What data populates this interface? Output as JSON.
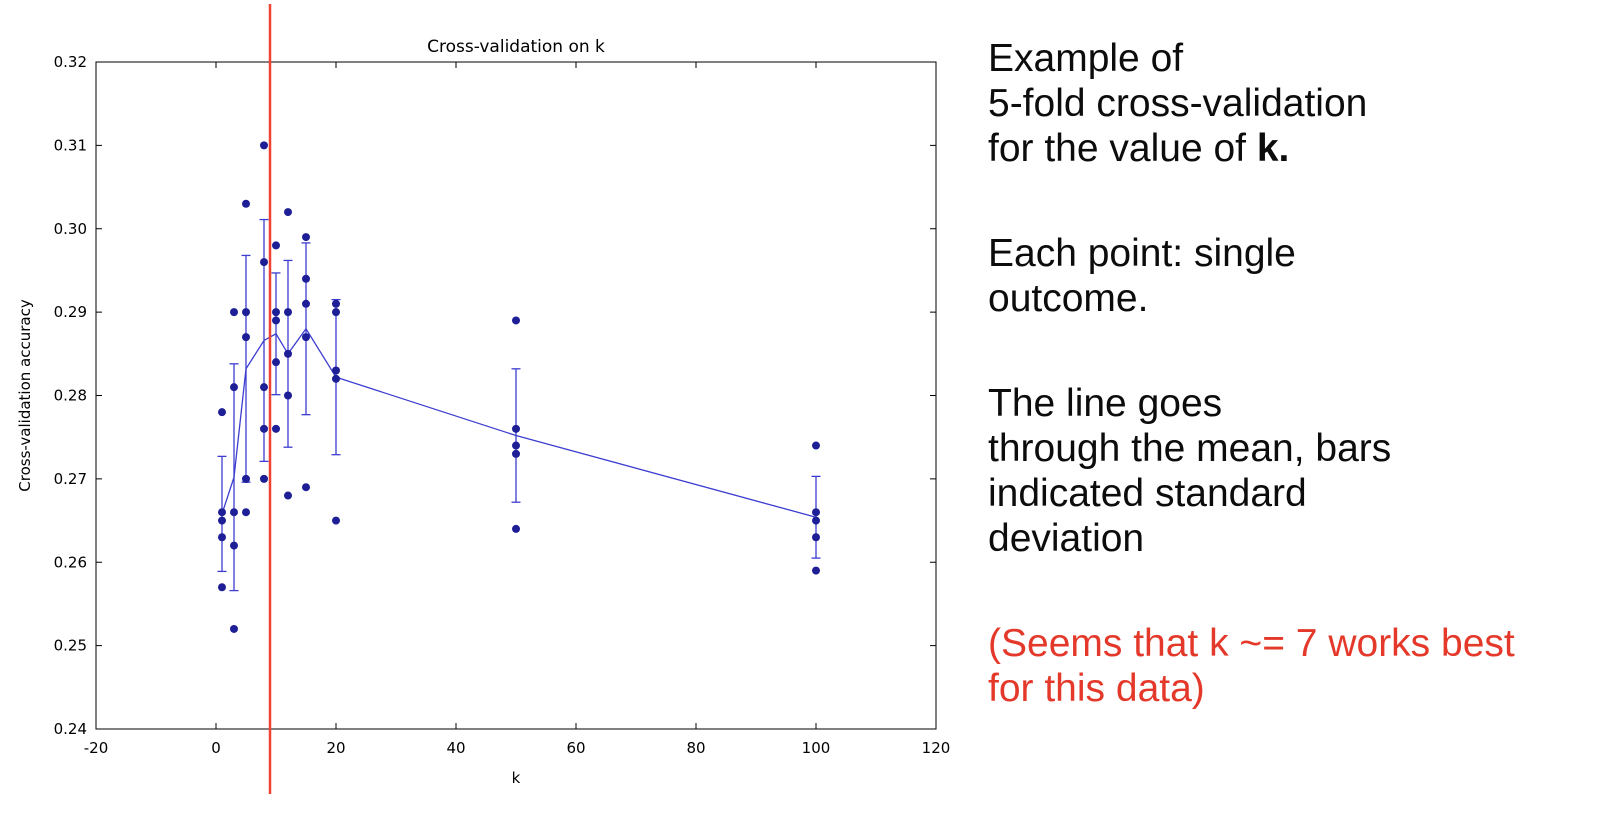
{
  "page": {
    "background": "#ffffff"
  },
  "chart_data": {
    "type": "scatter",
    "title": "Cross-validation on k",
    "xlabel": "k",
    "ylabel": "Cross-validation accuracy",
    "xlim": [
      -20,
      120
    ],
    "ylim": [
      0.24,
      0.32
    ],
    "xticks": [
      -20,
      0,
      20,
      40,
      60,
      80,
      100,
      120
    ],
    "xtick_labels": [
      "-20",
      "0",
      "20",
      "40",
      "60",
      "80",
      "100",
      "120"
    ],
    "yticks": [
      0.24,
      0.25,
      0.26,
      0.27,
      0.28,
      0.29,
      0.3,
      0.31,
      0.32
    ],
    "ytick_labels": [
      "0.24",
      "0.25",
      "0.26",
      "0.27",
      "0.28",
      "0.29",
      "0.30",
      "0.31",
      "0.32"
    ],
    "grid": false,
    "k_choices": [
      1,
      3,
      5,
      8,
      10,
      12,
      15,
      20,
      50,
      100
    ],
    "fold_accuracies": [
      [
        0.257,
        0.263,
        0.265,
        0.266,
        0.278
      ],
      [
        0.252,
        0.262,
        0.266,
        0.281,
        0.29
      ],
      [
        0.266,
        0.27,
        0.287,
        0.29,
        0.303
      ],
      [
        0.27,
        0.276,
        0.281,
        0.296,
        0.31
      ],
      [
        0.276,
        0.284,
        0.289,
        0.29,
        0.298
      ],
      [
        0.268,
        0.28,
        0.285,
        0.29,
        0.302
      ],
      [
        0.269,
        0.287,
        0.291,
        0.294,
        0.299
      ],
      [
        0.265,
        0.282,
        0.283,
        0.29,
        0.291
      ],
      [
        0.264,
        0.273,
        0.274,
        0.276,
        0.289
      ],
      [
        0.259,
        0.263,
        0.265,
        0.266,
        0.274
      ]
    ],
    "means": [
      0.2658,
      0.2702,
      0.2832,
      0.2866,
      0.2874,
      0.285,
      0.288,
      0.2822,
      0.2752,
      0.2654
    ],
    "stds": [
      0.0069,
      0.0136,
      0.0136,
      0.0145,
      0.0073,
      0.0112,
      0.0103,
      0.0093,
      0.008,
      0.0049
    ],
    "vline_x": 9,
    "colors": {
      "point": "#1e1e96",
      "mean_line": "#3d3dd0",
      "error_bar": "#3d3dd0",
      "vline": "#f04333",
      "axis": "#000000",
      "plot_bg": "#ffffff"
    }
  },
  "notes": {
    "para1": {
      "lines": [
        "Example of",
        "5-fold cross-validation",
        "for the value of"
      ],
      "bold_suffix": "k."
    },
    "para2": {
      "lines": [
        "Each point: single",
        "outcome."
      ]
    },
    "para3": {
      "lines": [
        "The line goes",
        "through the mean, bars",
        "indicated standard",
        "deviation"
      ]
    },
    "para4": {
      "lines": [
        "(Seems that k ~= 7 works best",
        "for this data)"
      ],
      "color": "#e4392a"
    }
  }
}
